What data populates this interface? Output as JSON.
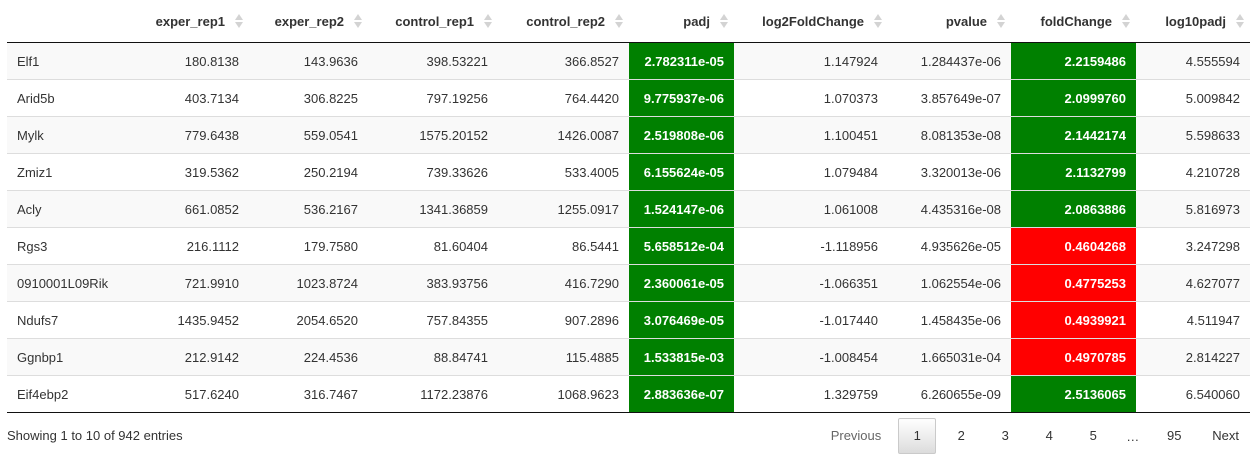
{
  "columns": [
    "",
    "exper_rep1",
    "exper_rep2",
    "control_rep1",
    "control_rep2",
    "padj",
    "log2FoldChange",
    "pvalue",
    "foldChange",
    "log10padj"
  ],
  "rows": [
    {
      "gene": "Elf1",
      "exper_rep1": "180.8138",
      "exper_rep2": "143.9636",
      "control_rep1": "398.53221",
      "control_rep2": "366.8527",
      "padj": "2.782311e-05",
      "log2FoldChange": "1.147924",
      "pvalue": "1.284437e-06",
      "foldChange": "2.2159486",
      "log10padj": "4.555594",
      "padj_color": "#008000",
      "fc_color": "#008000"
    },
    {
      "gene": "Arid5b",
      "exper_rep1": "403.7134",
      "exper_rep2": "306.8225",
      "control_rep1": "797.19256",
      "control_rep2": "764.4420",
      "padj": "9.775937e-06",
      "log2FoldChange": "1.070373",
      "pvalue": "3.857649e-07",
      "foldChange": "2.0999760",
      "log10padj": "5.009842",
      "padj_color": "#008000",
      "fc_color": "#008000"
    },
    {
      "gene": "Mylk",
      "exper_rep1": "779.6438",
      "exper_rep2": "559.0541",
      "control_rep1": "1575.20152",
      "control_rep2": "1426.0087",
      "padj": "2.519808e-06",
      "log2FoldChange": "1.100451",
      "pvalue": "8.081353e-08",
      "foldChange": "2.1442174",
      "log10padj": "5.598633",
      "padj_color": "#008000",
      "fc_color": "#008000"
    },
    {
      "gene": "Zmiz1",
      "exper_rep1": "319.5362",
      "exper_rep2": "250.2194",
      "control_rep1": "739.33626",
      "control_rep2": "533.4005",
      "padj": "6.155624e-05",
      "log2FoldChange": "1.079484",
      "pvalue": "3.320013e-06",
      "foldChange": "2.1132799",
      "log10padj": "4.210728",
      "padj_color": "#008000",
      "fc_color": "#008000"
    },
    {
      "gene": "Acly",
      "exper_rep1": "661.0852",
      "exper_rep2": "536.2167",
      "control_rep1": "1341.36859",
      "control_rep2": "1255.0917",
      "padj": "1.524147e-06",
      "log2FoldChange": "1.061008",
      "pvalue": "4.435316e-08",
      "foldChange": "2.0863886",
      "log10padj": "5.816973",
      "padj_color": "#008000",
      "fc_color": "#008000"
    },
    {
      "gene": "Rgs3",
      "exper_rep1": "216.1112",
      "exper_rep2": "179.7580",
      "control_rep1": "81.60404",
      "control_rep2": "86.5441",
      "padj": "5.658512e-04",
      "log2FoldChange": "-1.118956",
      "pvalue": "4.935626e-05",
      "foldChange": "0.4604268",
      "log10padj": "3.247298",
      "padj_color": "#008000",
      "fc_color": "#ff0000"
    },
    {
      "gene": "0910001L09Rik",
      "exper_rep1": "721.9910",
      "exper_rep2": "1023.8724",
      "control_rep1": "383.93756",
      "control_rep2": "416.7290",
      "padj": "2.360061e-05",
      "log2FoldChange": "-1.066351",
      "pvalue": "1.062554e-06",
      "foldChange": "0.4775253",
      "log10padj": "4.627077",
      "padj_color": "#008000",
      "fc_color": "#ff0000"
    },
    {
      "gene": "Ndufs7",
      "exper_rep1": "1435.9452",
      "exper_rep2": "2054.6520",
      "control_rep1": "757.84355",
      "control_rep2": "907.2896",
      "padj": "3.076469e-05",
      "log2FoldChange": "-1.017440",
      "pvalue": "1.458435e-06",
      "foldChange": "0.4939921",
      "log10padj": "4.511947",
      "padj_color": "#008000",
      "fc_color": "#ff0000"
    },
    {
      "gene": "Ggnbp1",
      "exper_rep1": "212.9142",
      "exper_rep2": "224.4536",
      "control_rep1": "88.84741",
      "control_rep2": "115.4885",
      "padj": "1.533815e-03",
      "log2FoldChange": "-1.008454",
      "pvalue": "1.665031e-04",
      "foldChange": "0.4970785",
      "log10padj": "2.814227",
      "padj_color": "#008000",
      "fc_color": "#ff0000"
    },
    {
      "gene": "Eif4ebp2",
      "exper_rep1": "517.6240",
      "exper_rep2": "316.7467",
      "control_rep1": "1172.23876",
      "control_rep2": "1068.9623",
      "padj": "2.883636e-07",
      "log2FoldChange": "1.329759",
      "pvalue": "6.260655e-09",
      "foldChange": "2.5136065",
      "log10padj": "6.540060",
      "padj_color": "#008000",
      "fc_color": "#008000"
    }
  ],
  "info": "Showing 1 to 10 of 942 entries",
  "pagination": {
    "previous": "Previous",
    "pages": [
      "1",
      "2",
      "3",
      "4",
      "5"
    ],
    "ellipsis": "…",
    "last_page": "95",
    "next": "Next",
    "current": "1"
  }
}
